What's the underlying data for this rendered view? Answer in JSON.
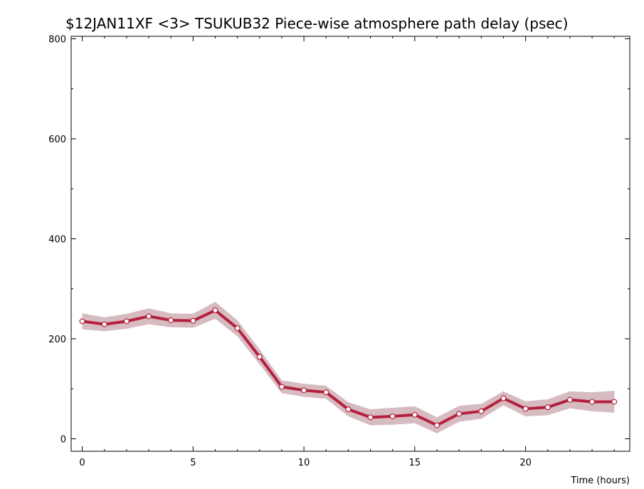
{
  "chart_data": {
    "type": "line",
    "title": "$12JAN11XF <3>  TSUKUB32  Piece-wise atmosphere path delay (psec)",
    "xlabel": "Time (hours)",
    "ylabel": "",
    "xlim": [
      -0.5,
      24.7
    ],
    "ylim": [
      -25,
      805
    ],
    "x_ticks": [
      0,
      5,
      10,
      15,
      20
    ],
    "y_ticks": [
      0,
      200,
      400,
      600,
      800
    ],
    "grid": false,
    "colors": {
      "line": "#b5203f",
      "band": "#d6bcc0",
      "marker_fill": "#ffffff",
      "axis": "#000000"
    },
    "series": [
      {
        "x": [
          0,
          1,
          2,
          3,
          4,
          5,
          6,
          7,
          8,
          9,
          10,
          11,
          12,
          13,
          14,
          15,
          16,
          17,
          18,
          19,
          20,
          21,
          22,
          23,
          24
        ],
        "values": [
          235,
          229,
          235,
          245,
          237,
          236,
          257,
          221,
          164,
          104,
          97,
          93,
          59,
          43,
          45,
          48,
          27,
          50,
          55,
          81,
          60,
          63,
          78,
          74,
          74
        ],
        "error": [
          16,
          14,
          15,
          16,
          14,
          14,
          17,
          16,
          15,
          13,
          13,
          13,
          14,
          16,
          17,
          17,
          16,
          16,
          15,
          14,
          15,
          16,
          17,
          19,
          22
        ]
      }
    ]
  }
}
